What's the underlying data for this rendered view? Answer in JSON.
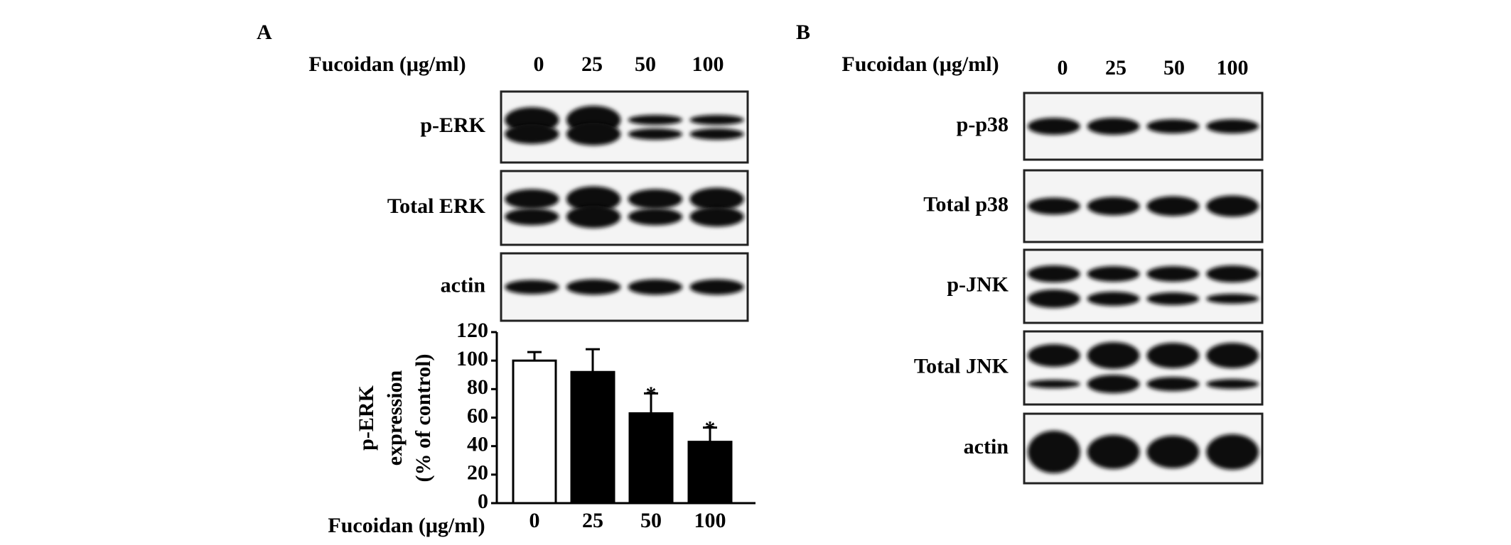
{
  "panel_a": {
    "label": "A",
    "header": "Fucoidan (μg/ml)",
    "doses": [
      "0",
      "25",
      "50",
      "100"
    ],
    "rows": [
      "p-ERK",
      "Total ERK",
      "actin"
    ]
  },
  "panel_b": {
    "label": "B",
    "header": "Fucoidan (μg/ml)",
    "doses": [
      "0",
      "25",
      "50",
      "100"
    ],
    "rows": [
      "p-p38",
      "Total p38",
      "p-JNK",
      "Total JNK",
      "actin"
    ]
  },
  "chart_data": {
    "type": "bar",
    "categories": [
      "0",
      "25",
      "50",
      "100"
    ],
    "values": [
      100,
      92,
      63,
      43
    ],
    "errors": [
      6,
      16,
      14,
      10
    ],
    "colors": [
      "#ffffff",
      "#000000",
      "#000000",
      "#000000"
    ],
    "significance": [
      null,
      null,
      "*",
      "*"
    ],
    "ylabel": [
      "p-ERK",
      "expression",
      "(% of control)"
    ],
    "xlabel": "Fucoidan (μg/ml)",
    "ylim": [
      0,
      120
    ],
    "yticks": [
      0,
      20,
      40,
      60,
      80,
      100,
      120
    ]
  }
}
